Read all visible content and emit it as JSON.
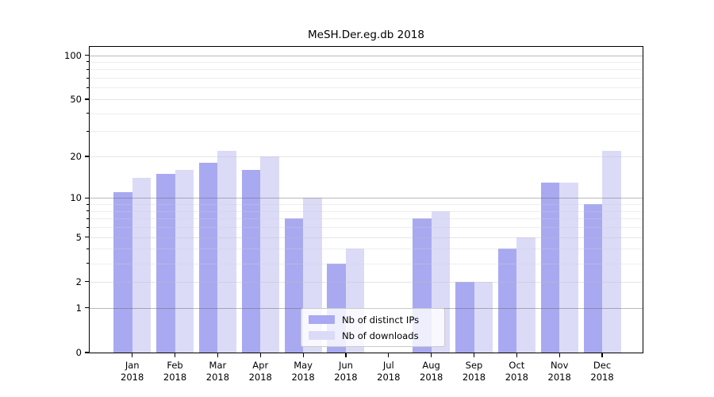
{
  "chart_data": {
    "type": "bar",
    "title": "MeSH.Der.eg.db 2018",
    "x_ticks": [
      {
        "month": "Jan",
        "year": "2018"
      },
      {
        "month": "Feb",
        "year": "2018"
      },
      {
        "month": "Mar",
        "year": "2018"
      },
      {
        "month": "Apr",
        "year": "2018"
      },
      {
        "month": "May",
        "year": "2018"
      },
      {
        "month": "Jun",
        "year": "2018"
      },
      {
        "month": "Jul",
        "year": "2018"
      },
      {
        "month": "Aug",
        "year": "2018"
      },
      {
        "month": "Sep",
        "year": "2018"
      },
      {
        "month": "Oct",
        "year": "2018"
      },
      {
        "month": "Nov",
        "year": "2018"
      },
      {
        "month": "Dec",
        "year": "2018"
      }
    ],
    "series": [
      {
        "key": "ips",
        "name": "Nb of distinct IPs",
        "color": "#a9a9f1",
        "values": [
          11,
          15,
          18,
          16,
          7,
          3,
          0,
          7,
          2,
          4,
          13,
          9
        ]
      },
      {
        "key": "downloads",
        "name": "Nb of downloads",
        "color": "#dbdbf8",
        "values": [
          14,
          16,
          22,
          20,
          10,
          4,
          0,
          8,
          2,
          5,
          13,
          22
        ]
      }
    ],
    "yscale": "log1p",
    "ylim": [
      0,
      114
    ],
    "y_tick_values": [
      100,
      50,
      20,
      10,
      5,
      2,
      1,
      0
    ],
    "y_tick_labels": [
      "100",
      "50",
      "20",
      "10",
      "5",
      "2",
      "1",
      "0"
    ],
    "grid": {
      "major": [
        1,
        10,
        100
      ],
      "light": [
        2,
        5,
        20,
        50
      ],
      "minor": [
        3,
        4,
        6,
        7,
        8,
        9,
        30,
        40,
        60,
        70,
        80,
        90
      ]
    },
    "legend_position": "lower center",
    "colors": {
      "axis": "#000000",
      "background": "#ffffff"
    }
  }
}
